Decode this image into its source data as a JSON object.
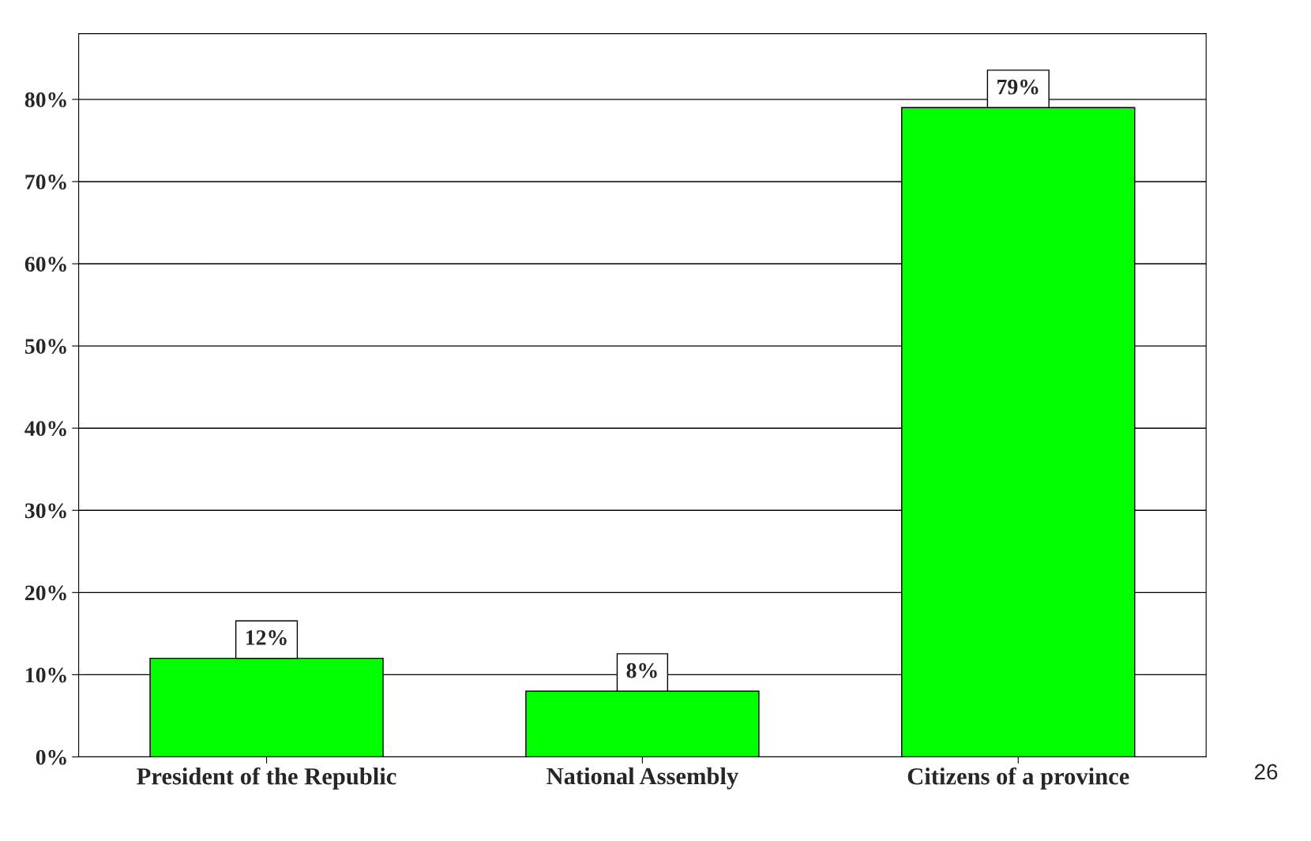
{
  "chart_data": {
    "type": "bar",
    "categories": [
      "President of the Republic",
      "National Assembly",
      "Citizens of a province"
    ],
    "values": [
      12,
      8,
      79
    ],
    "color": "#00ff00",
    "data_labels": true,
    "value_labels": [
      "12%",
      "8%",
      "79%"
    ],
    "ylim": [
      0,
      88
    ],
    "yticks": [
      {
        "value": 0,
        "label": "0%"
      },
      {
        "value": 10,
        "label": "10%"
      },
      {
        "value": 20,
        "label": "20%"
      },
      {
        "value": 30,
        "label": "30%"
      },
      {
        "value": 40,
        "label": "40%"
      },
      {
        "value": 50,
        "label": "50%"
      },
      {
        "value": 60,
        "label": "60%"
      },
      {
        "value": 70,
        "label": "70%"
      },
      {
        "value": 80,
        "label": "80%"
      }
    ],
    "grid": "y",
    "annotations": [
      "26"
    ]
  }
}
